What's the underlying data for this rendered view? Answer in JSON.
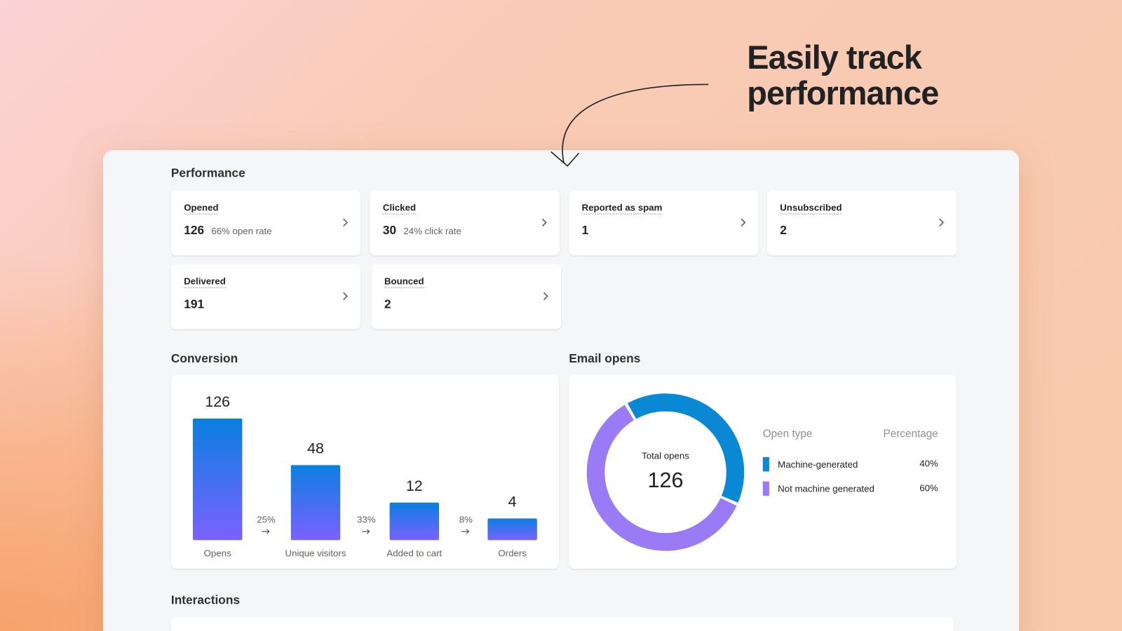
{
  "headline": [
    "Easily track",
    "performance"
  ],
  "performance": {
    "title": "Performance",
    "cards": [
      {
        "label": "Opened",
        "value": 126,
        "rate": "66% open rate"
      },
      {
        "label": "Clicked",
        "value": 30,
        "rate": "24% click rate"
      },
      {
        "label": "Reported as spam",
        "value": 1
      },
      {
        "label": "Unsubscribed",
        "value": 2
      },
      {
        "label": "Delivered",
        "value": 191
      },
      {
        "label": "Bounced",
        "value": 2
      }
    ]
  },
  "conversion": {
    "title": "Conversion",
    "type": "bar",
    "color_top": "#0a7fe0",
    "color_bottom": "#7b61ff",
    "categories": [
      "Opens",
      "Unique visitors",
      "Added to cart",
      "Orders"
    ],
    "values": [
      126,
      48,
      12,
      4
    ],
    "steps": [
      "25%",
      "33%",
      "8%"
    ]
  },
  "email_opens": {
    "title": "Email opens",
    "type": "pie",
    "center_label": "Total opens",
    "center_value": 126,
    "headers": [
      "Open type",
      "Percentage"
    ],
    "series": [
      {
        "name": "Machine-generated",
        "color": "#0a88d4",
        "value": 40,
        "value_label": "40%"
      },
      {
        "name": "Not machine generated",
        "color": "#9b7af5",
        "value": 60,
        "value_label": "60%"
      }
    ]
  },
  "interactions": {
    "title": "Interactions"
  }
}
